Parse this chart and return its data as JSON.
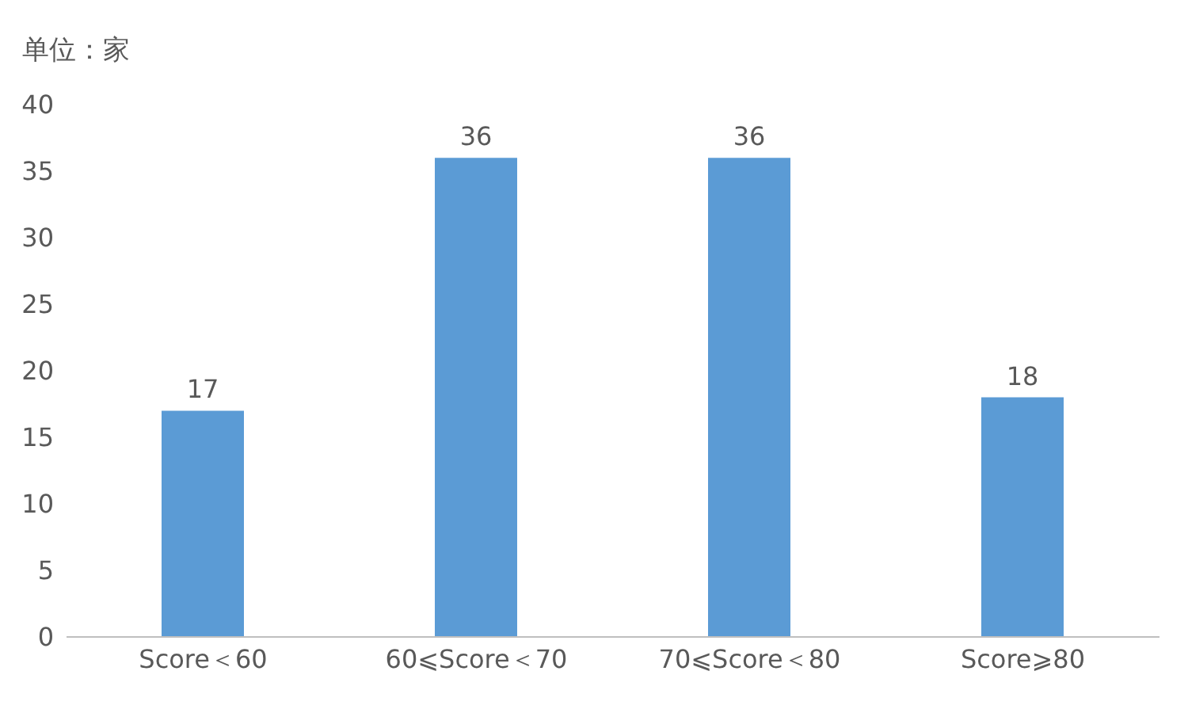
{
  "chart_data": {
    "type": "bar",
    "ylabel": "单位：家",
    "categories": [
      "Score＜60",
      "60⩽Score＜70",
      "70⩽Score＜80",
      "Score⩾80"
    ],
    "values": [
      17,
      36,
      36,
      18
    ],
    "color": "#5b9bd5",
    "ylim": [
      0,
      40
    ],
    "yticks": [
      0,
      5,
      10,
      15,
      20,
      25,
      30,
      35,
      40
    ],
    "grid": false,
    "data_labels": true
  }
}
